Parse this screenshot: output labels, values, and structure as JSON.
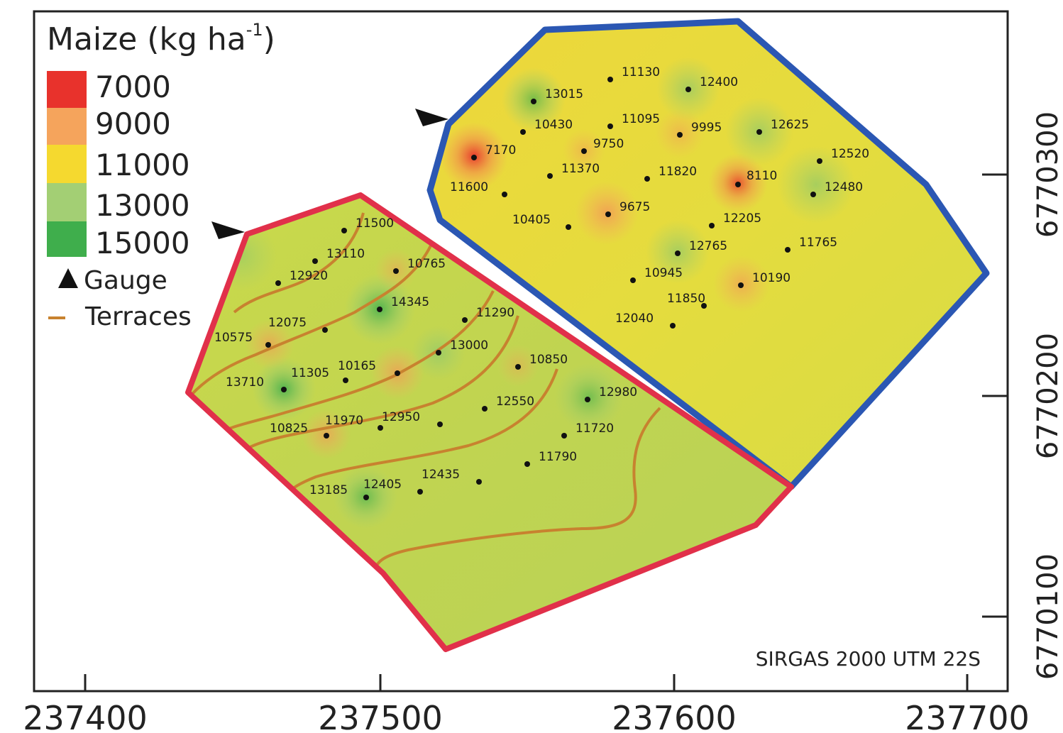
{
  "legend": {
    "title_main": "Maize (kg ha",
    "title_sup": "-1",
    "title_close": ")",
    "classes": [
      {
        "label": "7000",
        "color": "#e8322c"
      },
      {
        "label": "9000",
        "color": "#f5a45c"
      },
      {
        "label": "11000",
        "color": "#f5d92f"
      },
      {
        "label": "13000",
        "color": "#a3cf74"
      },
      {
        "label": "15000",
        "color": "#3fae4c"
      }
    ],
    "gauge_label": "Gauge",
    "terraces_label": "Terraces"
  },
  "crs_label": "SIRGAS 2000 UTM 22S",
  "axes": {
    "x_ticks": [
      "237400",
      "237500",
      "237600",
      "237700"
    ],
    "y_ticks": [
      "6770300",
      "6770200",
      "6770100"
    ]
  },
  "colors": {
    "upper_boundary": "#2b57b3",
    "lower_boundary": "#e1304a",
    "terrace": "#c8822f",
    "base_fill": "#e0dc3c"
  },
  "points": [
    {
      "label": "11130"
    },
    {
      "label": "12400"
    },
    {
      "label": "13015"
    },
    {
      "label": "10430"
    },
    {
      "label": "11095"
    },
    {
      "label": "9995"
    },
    {
      "label": "12625"
    },
    {
      "label": "7170"
    },
    {
      "label": "9750"
    },
    {
      "label": "11370"
    },
    {
      "label": "11820"
    },
    {
      "label": "8110"
    },
    {
      "label": "12520"
    },
    {
      "label": "11600"
    },
    {
      "label": "12480"
    },
    {
      "label": "10405"
    },
    {
      "label": "9675"
    },
    {
      "label": "12205"
    },
    {
      "label": "12765"
    },
    {
      "label": "11765"
    },
    {
      "label": "10945"
    },
    {
      "label": "10190"
    },
    {
      "label": "11850"
    },
    {
      "label": "12040"
    },
    {
      "label": "11500"
    },
    {
      "label": "13110"
    },
    {
      "label": "10765"
    },
    {
      "label": "12920"
    },
    {
      "label": "14345"
    },
    {
      "label": "11290"
    },
    {
      "label": "12075"
    },
    {
      "label": "10575"
    },
    {
      "label": "13000"
    },
    {
      "label": "10850"
    },
    {
      "label": "13710"
    },
    {
      "label": "11305"
    },
    {
      "label": "10165"
    },
    {
      "label": "12980"
    },
    {
      "label": "12550"
    },
    {
      "label": "11970"
    },
    {
      "label": "12950"
    },
    {
      "label": "10825"
    },
    {
      "label": "11720"
    },
    {
      "label": "11790"
    },
    {
      "label": "12435"
    },
    {
      "label": "13185"
    },
    {
      "label": "12405"
    }
  ]
}
